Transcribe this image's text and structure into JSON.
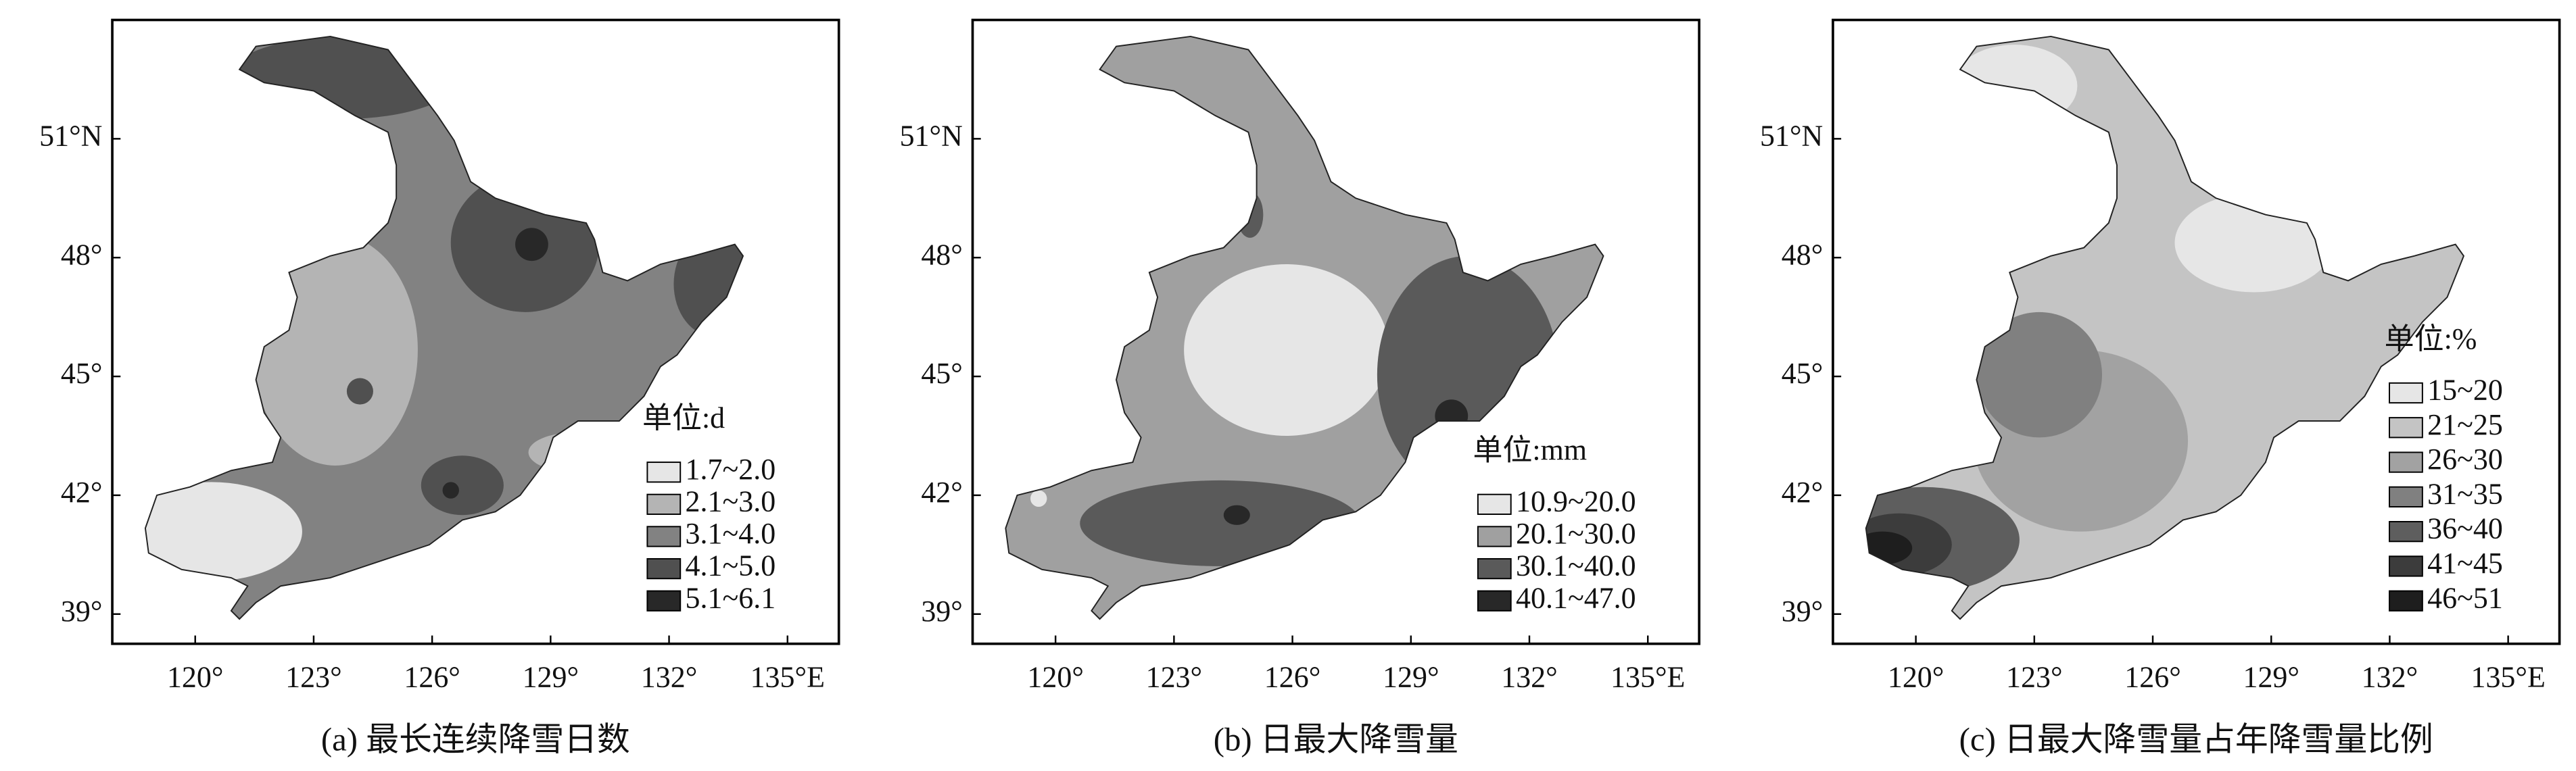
{
  "maps": [
    {
      "caption": "(a) 最长连续降雪日数",
      "legend_title": "单位:d",
      "legend": [
        {
          "label": "1.7~2.0",
          "color": "#e6e6e6"
        },
        {
          "label": "2.1~3.0",
          "color": "#b4b4b4"
        },
        {
          "label": "3.1~4.0",
          "color": "#828282"
        },
        {
          "label": "4.1~5.0",
          "color": "#505050"
        },
        {
          "label": "5.1~6.1",
          "color": "#282828"
        }
      ],
      "xlim": [
        117.9,
        136.3
      ],
      "ylim": [
        38.25,
        54
      ],
      "xticks": [
        {
          "value": 120,
          "label": "120°"
        },
        {
          "value": 123,
          "label": "123°"
        },
        {
          "value": 126,
          "label": "126°"
        },
        {
          "value": 129,
          "label": "129°"
        },
        {
          "value": 132,
          "label": "132°"
        },
        {
          "value": 135,
          "label": "135°E"
        }
      ],
      "yticks": [
        {
          "value": 39,
          "label": "39°"
        },
        {
          "value": 42,
          "label": "42°"
        },
        {
          "value": 45,
          "label": "45°"
        },
        {
          "value": 48,
          "label": "48°"
        },
        {
          "value": 51,
          "label": "51°N"
        }
      ]
    },
    {
      "caption": "(b) 日最大降雪量",
      "legend_title": "单位:mm",
      "legend": [
        {
          "label": "10.9~20.0",
          "color": "#e6e6e6"
        },
        {
          "label": "20.1~30.0",
          "color": "#a0a0a0"
        },
        {
          "label": "30.1~40.0",
          "color": "#5a5a5a"
        },
        {
          "label": "40.1~47.0",
          "color": "#282828"
        }
      ],
      "xlim": [
        117.9,
        136.3
      ],
      "ylim": [
        38.25,
        54
      ],
      "xticks": [
        {
          "value": 120,
          "label": "120°"
        },
        {
          "value": 123,
          "label": "123°"
        },
        {
          "value": 126,
          "label": "126°"
        },
        {
          "value": 129,
          "label": "129°"
        },
        {
          "value": 132,
          "label": "132°"
        },
        {
          "value": 135,
          "label": "135°E"
        }
      ],
      "yticks": [
        {
          "value": 39,
          "label": "39°"
        },
        {
          "value": 42,
          "label": "42°"
        },
        {
          "value": 45,
          "label": "45°"
        },
        {
          "value": 48,
          "label": "48°"
        },
        {
          "value": 51,
          "label": "51°N"
        }
      ]
    },
    {
      "caption": "(c) 日最大降雪量占年降雪量比例",
      "legend_title": "单位:%",
      "legend": [
        {
          "label": "15~20",
          "color": "#e6e6e6"
        },
        {
          "label": "21~25",
          "color": "#c4c4c4"
        },
        {
          "label": "26~30",
          "color": "#a2a2a2"
        },
        {
          "label": "31~35",
          "color": "#808080"
        },
        {
          "label": "36~40",
          "color": "#5e5e5e"
        },
        {
          "label": "41~45",
          "color": "#3c3c3c"
        },
        {
          "label": "46~51",
          "color": "#1e1e1e"
        }
      ],
      "xlim": [
        117.9,
        136.3
      ],
      "ylim": [
        38.25,
        54
      ],
      "xticks": [
        {
          "value": 120,
          "label": "120°"
        },
        {
          "value": 123,
          "label": "123°"
        },
        {
          "value": 126,
          "label": "126°"
        },
        {
          "value": 129,
          "label": "129°"
        },
        {
          "value": 132,
          "label": "132°"
        },
        {
          "value": 135,
          "label": "135°E"
        }
      ],
      "yticks": [
        {
          "value": 39,
          "label": "39°"
        },
        {
          "value": 42,
          "label": "42°"
        },
        {
          "value": 45,
          "label": "45°"
        },
        {
          "value": 48,
          "label": "48°"
        },
        {
          "value": 51,
          "label": "51°N"
        }
      ]
    }
  ]
}
